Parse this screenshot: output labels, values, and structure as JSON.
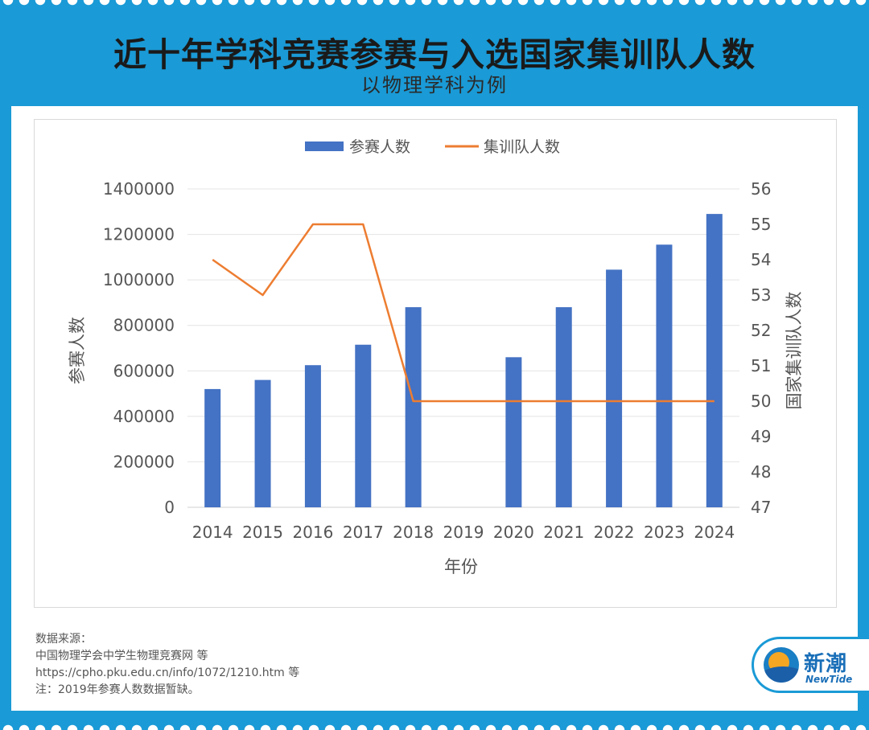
{
  "header": {
    "title": "近十年学科竞赛参赛与入选国家集训队人数",
    "subtitle": "以物理学科为例"
  },
  "chart_data": {
    "type": "bar+line",
    "categories": [
      "2014",
      "2015",
      "2016",
      "2017",
      "2018",
      "2019",
      "2020",
      "2021",
      "2022",
      "2023",
      "2024"
    ],
    "series": [
      {
        "name": "参赛人数",
        "type": "bar",
        "axis": "left",
        "values": [
          520000,
          560000,
          625000,
          715000,
          880000,
          null,
          660000,
          880000,
          1045000,
          1155000,
          1290000
        ]
      },
      {
        "name": "集训队人数",
        "type": "line",
        "axis": "right",
        "values": [
          54,
          53,
          55,
          55,
          50,
          50,
          50,
          50,
          50,
          50,
          50
        ]
      }
    ],
    "xlabel": "年份",
    "ylabel": "参赛人数",
    "y2label": "国家集训队人数",
    "ylim": [
      0,
      1400000
    ],
    "y2lim": [
      47,
      56
    ],
    "yticks": [
      "0",
      "200000",
      "400000",
      "600000",
      "800000",
      "1000000",
      "1200000",
      "1400000"
    ],
    "y2ticks": [
      "47",
      "48",
      "49",
      "50",
      "51",
      "52",
      "53",
      "54",
      "55",
      "56"
    ],
    "legend_position": "top",
    "grid": true,
    "colors": {
      "bar": "#4472c4",
      "line": "#ed7d31"
    }
  },
  "source": {
    "label": "数据来源：",
    "line1": "中国物理学会中学生物理竞赛网 等",
    "line2": "https://cpho.pku.edu.cn/info/1072/1210.htm 等",
    "note": "注：2019年参赛人数数据暂缺。"
  },
  "logo": {
    "name": "新潮",
    "sub": "NewTide"
  }
}
